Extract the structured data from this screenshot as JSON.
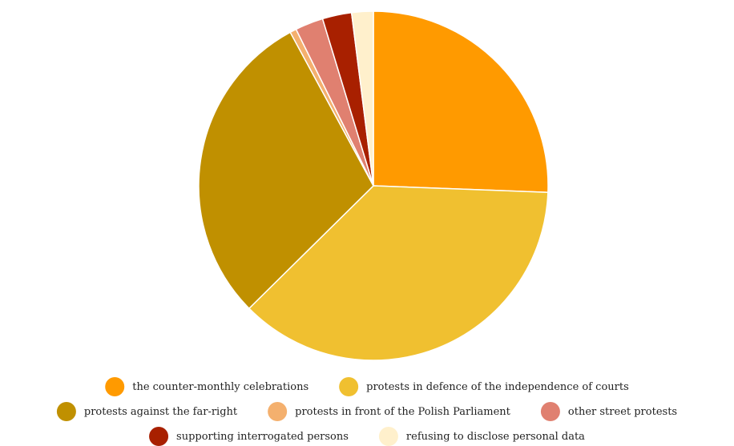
{
  "chart_data": {
    "type": "pie",
    "title": "",
    "start_angle_deg": 0,
    "direction": "clockwise",
    "legend_position": "bottom",
    "series": [
      {
        "name": "the counter-monthly celebrations",
        "value": 25.6,
        "color": "#FF9A00"
      },
      {
        "name": "protests in defence of the independence of courts",
        "value": 37.0,
        "color": "#F0C030"
      },
      {
        "name": "protests against the far-right",
        "value": 29.5,
        "color": "#C09000"
      },
      {
        "name": "protests in front of the Polish Parliament",
        "value": 0.6,
        "color": "#F4B06E"
      },
      {
        "name": "other street protests",
        "value": 2.6,
        "color": "#E08070"
      },
      {
        "name": "supporting interrogated persons",
        "value": 2.7,
        "color": "#A82000"
      },
      {
        "name": "refusing to disclose personal data",
        "value": 2.0,
        "color": "#FFF0CC"
      }
    ]
  }
}
